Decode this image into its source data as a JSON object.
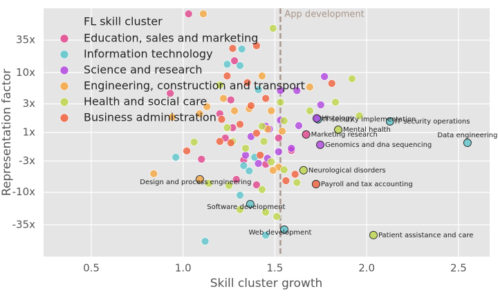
{
  "chart_data": {
    "type": "scatter",
    "xlabel": "Skill cluster growth",
    "ylabel": "Representation factor",
    "xlim": [
      0.24,
      2.67
    ],
    "ylim": [
      -119,
      119
    ],
    "yscale": "signed-log",
    "xticks": [
      0.5,
      {
        "value": 1,
        "label": "1.0"
      },
      1.5,
      {
        "value": 2,
        "label": "2.0"
      },
      2.5
    ],
    "yticks": [
      {
        "value": 35,
        "label": "35x"
      },
      {
        "value": 10,
        "label": "10x"
      },
      {
        "value": 3,
        "label": "3x"
      },
      {
        "value": 1,
        "label": "1x"
      },
      {
        "value": -3,
        "label": "-3x"
      },
      {
        "value": -10,
        "label": "-10x"
      },
      {
        "value": -35,
        "label": "-35x"
      }
    ],
    "grid": true,
    "legend": "upper left",
    "legend_title": "FL skill cluster",
    "reference_line": {
      "x": 1.53,
      "label": "App development",
      "color": "#a8968a"
    },
    "series": [
      {
        "name": "Education, sales and marketing",
        "color": "#e0448c",
        "x": [
          1.03,
          0.93,
          1.28,
          1.26,
          1.2,
          1.27,
          1.23,
          1.33,
          1.29,
          1.1,
          1.4,
          1.59,
          1.52,
          1.45,
          1.67
        ],
        "y": [
          96,
          4.5,
          15.8,
          3.5,
          2.05,
          1.2,
          -1.24,
          -2.9,
          -6.1,
          -2.8,
          -7.5,
          -2.0,
          -1.24,
          -3.4,
          -1.08
        ],
        "point_labels": [
          null,
          null,
          null,
          null,
          null,
          null,
          null,
          null,
          null,
          null,
          null,
          null,
          null,
          null,
          "Marketing research"
        ]
      },
      {
        "name": "Information technology",
        "color": "#5cc6cc",
        "x": [
          1.32,
          1.31,
          1.24,
          1.41,
          0.96,
          1.33,
          1.36,
          1.31,
          1.12,
          1.45,
          1.39,
          1.735,
          2.127,
          2.549,
          1.366,
          1.551
        ],
        "y": [
          24.8,
          13.1,
          13.8,
          5.2,
          -2.6,
          -3.6,
          -4.4,
          -11.2,
          -66,
          -52,
          -2.6,
          1.66,
          1.53,
          -1.49,
          -15.8,
          -42.1
        ],
        "point_labels": [
          null,
          null,
          null,
          null,
          null,
          null,
          null,
          null,
          null,
          null,
          null,
          "IT security implementation",
          "IT security operations",
          "Data engineering",
          "Software development",
          "Web development"
        ]
      },
      {
        "name": "Science and research",
        "color": "#b245e0",
        "x": [
          1.77,
          1.62,
          1.53,
          1.75,
          1.63,
          1.53,
          1.45,
          1.59,
          1.52,
          1.34,
          1.37,
          1.46,
          1.41,
          1.47,
          1.728,
          1.747
        ],
        "y": [
          8.6,
          5.0,
          5.0,
          2.9,
          1.3,
          1.6,
          1.27,
          -1.84,
          -2.1,
          -2.4,
          -1.17,
          -2.7,
          -3.3,
          1.14,
          1.72,
          -1.61
        ],
        "point_labels": [
          null,
          null,
          null,
          null,
          null,
          null,
          null,
          null,
          null,
          null,
          null,
          null,
          null,
          null,
          "Histology",
          "Genomics and dna sequencing"
        ]
      },
      {
        "name": "Engineering, construction and transport",
        "color": "#f5a640",
        "x": [
          1.11,
          1.43,
          1.69,
          1.22,
          1.13,
          1.09,
          0.94,
          1.28,
          1.36,
          1.48,
          1.46,
          1.54,
          0.84,
          1.52,
          1.49,
          1.091
        ],
        "y": [
          96,
          8.8,
          5.75,
          3.7,
          2.7,
          2.05,
          1.8,
          2.3,
          2.5,
          2.3,
          1.14,
          1.05,
          -4.9,
          -3.8,
          -4.3,
          -6.07
        ],
        "point_labels": [
          null,
          null,
          null,
          null,
          null,
          null,
          null,
          null,
          null,
          null,
          null,
          null,
          null,
          null,
          null,
          "Design and process engineering"
        ]
      },
      {
        "name": "Health and social care",
        "color": "#bdd64a",
        "x": [
          1.49,
          1.92,
          1.83,
          1.69,
          1.96,
          1.55,
          1.2,
          1.24,
          1.06,
          1.27,
          1.44,
          1.34,
          1.48,
          1.55,
          1.62,
          1.25,
          1.14,
          1.43,
          1.31,
          1.45,
          1.51,
          1.43,
          1.53,
          1.845,
          1.656,
          2.037
        ],
        "y": [
          55,
          7.9,
          3.2,
          2.3,
          1.9,
          1.57,
          6.2,
          1.2,
          -1.45,
          -1.41,
          -1.41,
          -1.84,
          -3.1,
          -4.2,
          -6.9,
          -7.7,
          -7.1,
          -9.0,
          -19.5,
          -21.6,
          -25.4,
          1.27,
          3.2,
          1.11,
          -4.29,
          -52
        ],
        "point_labels": [
          null,
          null,
          null,
          null,
          null,
          null,
          null,
          null,
          null,
          null,
          null,
          null,
          null,
          null,
          null,
          null,
          null,
          null,
          null,
          null,
          null,
          null,
          null,
          "Mental health",
          "Neurological disorders",
          "Patient assistance and care"
        ]
      },
      {
        "name": "Business administration",
        "color": "#f0603c",
        "x": [
          1.27,
          1.4,
          1.24,
          1.35,
          1.81,
          1.45,
          1.37,
          1.21,
          1.31,
          1.2,
          1.26,
          1.02,
          1.42,
          1.56,
          1.61,
          1.4,
          1.724
        ],
        "y": [
          25.4,
          28.1,
          8.8,
          6.8,
          6.6,
          3.7,
          2.8,
          1.66,
          1.37,
          -1.41,
          -1.49,
          -2.04,
          -2.4,
          -6.4,
          -5.0,
          -1.03,
          -7.3
        ],
        "point_labels": [
          null,
          null,
          null,
          null,
          null,
          null,
          null,
          null,
          null,
          null,
          null,
          null,
          null,
          null,
          null,
          null,
          "Payroll and tax accounting"
        ]
      }
    ]
  }
}
